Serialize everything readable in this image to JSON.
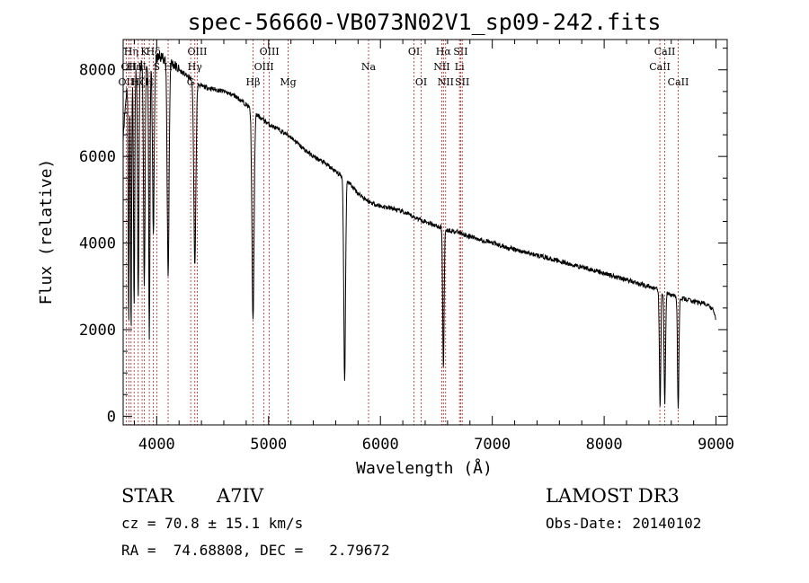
{
  "chart_data": {
    "type": "line",
    "title": "spec-56660-VB073N02V1_sp09-242.fits",
    "xlabel": "Wavelength (Å)",
    "ylabel": "Flux (relative)",
    "xlim": [
      3700,
      9100
    ],
    "ylim": [
      -200,
      8700
    ],
    "xticks": [
      4000,
      5000,
      6000,
      7000,
      8000,
      9000
    ],
    "xtick_labels": [
      "4000",
      "5000",
      "6000",
      "7000",
      "8000",
      "9000"
    ],
    "yticks": [
      0,
      2000,
      4000,
      6000,
      8000
    ],
    "ytick_labels": [
      "0",
      "2000",
      "4000",
      "6000",
      "8000"
    ],
    "series": [
      {
        "name": "spectrum",
        "continuum": [
          [
            3700,
            6500
          ],
          [
            3730,
            7500
          ],
          [
            3760,
            7800
          ],
          [
            3800,
            7950
          ],
          [
            3860,
            8100
          ],
          [
            3920,
            8150
          ],
          [
            3980,
            8250
          ],
          [
            4050,
            8300
          ],
          [
            4120,
            8200
          ],
          [
            4200,
            8000
          ],
          [
            4300,
            7800
          ],
          [
            4400,
            7620
          ],
          [
            4500,
            7560
          ],
          [
            4600,
            7500
          ],
          [
            4700,
            7400
          ],
          [
            4800,
            7200
          ],
          [
            4900,
            6950
          ],
          [
            5000,
            6750
          ],
          [
            5100,
            6600
          ],
          [
            5200,
            6450
          ],
          [
            5300,
            6200
          ],
          [
            5400,
            6000
          ],
          [
            5500,
            5850
          ],
          [
            5600,
            5650
          ],
          [
            5700,
            5450
          ],
          [
            5800,
            5150
          ],
          [
            5900,
            4950
          ],
          [
            6000,
            4850
          ],
          [
            6100,
            4800
          ],
          [
            6200,
            4720
          ],
          [
            6300,
            4600
          ],
          [
            6400,
            4500
          ],
          [
            6500,
            4400
          ],
          [
            6600,
            4300
          ],
          [
            6700,
            4250
          ],
          [
            6800,
            4150
          ],
          [
            6900,
            4080
          ],
          [
            7000,
            4000
          ],
          [
            7100,
            3920
          ],
          [
            7200,
            3850
          ],
          [
            7300,
            3780
          ],
          [
            7400,
            3720
          ],
          [
            7500,
            3650
          ],
          [
            7600,
            3580
          ],
          [
            7700,
            3500
          ],
          [
            7800,
            3450
          ],
          [
            7900,
            3380
          ],
          [
            8000,
            3300
          ],
          [
            8100,
            3230
          ],
          [
            8200,
            3150
          ],
          [
            8300,
            3070
          ],
          [
            8400,
            3000
          ],
          [
            8500,
            2900
          ],
          [
            8600,
            2800
          ],
          [
            8700,
            2720
          ],
          [
            8800,
            2650
          ],
          [
            8900,
            2600
          ],
          [
            8960,
            2500
          ],
          [
            9000,
            2300
          ]
        ],
        "absorption_features": [
          {
            "center": 3700,
            "depth": 6500,
            "width": 4
          },
          {
            "center": 3750,
            "depth": 2200,
            "width": 6
          },
          {
            "center": 3771,
            "depth": 2000,
            "width": 6
          },
          {
            "center": 3798,
            "depth": 2500,
            "width": 7
          },
          {
            "center": 3835,
            "depth": 2700,
            "width": 8
          },
          {
            "center": 3889,
            "depth": 3000,
            "width": 9
          },
          {
            "center": 3934,
            "depth": 1800,
            "width": 7
          },
          {
            "center": 3970,
            "depth": 4200,
            "width": 10
          },
          {
            "center": 4102,
            "depth": 3300,
            "width": 11
          },
          {
            "center": 4341,
            "depth": 3500,
            "width": 12
          },
          {
            "center": 4861,
            "depth": 2200,
            "width": 12
          },
          {
            "center": 5680,
            "depth": 800,
            "width": 10
          },
          {
            "center": 6563,
            "depth": 1100,
            "width": 8
          },
          {
            "center": 8500,
            "depth": 250,
            "width": 8
          },
          {
            "center": 8542,
            "depth": 250,
            "width": 8
          },
          {
            "center": 8662,
            "depth": 200,
            "width": 8
          },
          {
            "center": 9000,
            "depth": 2200,
            "width": 7
          }
        ]
      }
    ],
    "line_markers": [
      {
        "x": 3727,
        "label": "OII",
        "row": 3
      },
      {
        "x": 3751,
        "label": "OII",
        "row": 2
      },
      {
        "x": 3771,
        "label": "Hη",
        "row": 1
      },
      {
        "x": 3798,
        "label": "Hε",
        "row": 2
      },
      {
        "x": 3835,
        "label": "Hζ",
        "row": 3
      },
      {
        "x": 3869,
        "label": "H",
        "row": 2
      },
      {
        "x": 3889,
        "label": "K",
        "row": 1
      },
      {
        "x": 3934,
        "label": "H",
        "row": 3
      },
      {
        "x": 3970,
        "label": "Hδ",
        "row": 1
      },
      {
        "x": 4000,
        "label": "S",
        "row": 2
      },
      {
        "x": 4102,
        "label": "H",
        "row": 2
      },
      {
        "x": 4304,
        "label": "G",
        "row": 3
      },
      {
        "x": 4341,
        "label": "Hγ",
        "row": 2
      },
      {
        "x": 4363,
        "label": "OIII",
        "row": 1
      },
      {
        "x": 4861,
        "label": "Hβ",
        "row": 3
      },
      {
        "x": 4959,
        "label": "OIII",
        "row": 2
      },
      {
        "x": 5007,
        "label": "OIII",
        "row": 1
      },
      {
        "x": 5175,
        "label": "Mg",
        "row": 3
      },
      {
        "x": 5894,
        "label": "Na",
        "row": 2
      },
      {
        "x": 6300,
        "label": "OI",
        "row": 1
      },
      {
        "x": 6364,
        "label": "OI",
        "row": 3
      },
      {
        "x": 6548,
        "label": "NII",
        "row": 2
      },
      {
        "x": 6563,
        "label": "Hα",
        "row": 1
      },
      {
        "x": 6583,
        "label": "NII",
        "row": 3
      },
      {
        "x": 6707,
        "label": "Li",
        "row": 2
      },
      {
        "x": 6717,
        "label": "SII",
        "row": 1
      },
      {
        "x": 6731,
        "label": "SII",
        "row": 3
      },
      {
        "x": 8498,
        "label": "CaII",
        "row": 2
      },
      {
        "x": 8542,
        "label": "CaII",
        "row": 1
      },
      {
        "x": 8662,
        "label": "CaII",
        "row": 3
      }
    ],
    "colors": {
      "spectrum": "#000000",
      "markers": "#b22222",
      "axes": "#000000"
    }
  },
  "info": {
    "object_type": "STAR",
    "subclass": "A7IV",
    "survey": "LAMOST DR3",
    "redshift": "cz = 70.8 ± 15.1 km/s",
    "obs_date": "Obs-Date: 20140102",
    "coords": "RA =  74.68808, DEC =   2.79672"
  }
}
